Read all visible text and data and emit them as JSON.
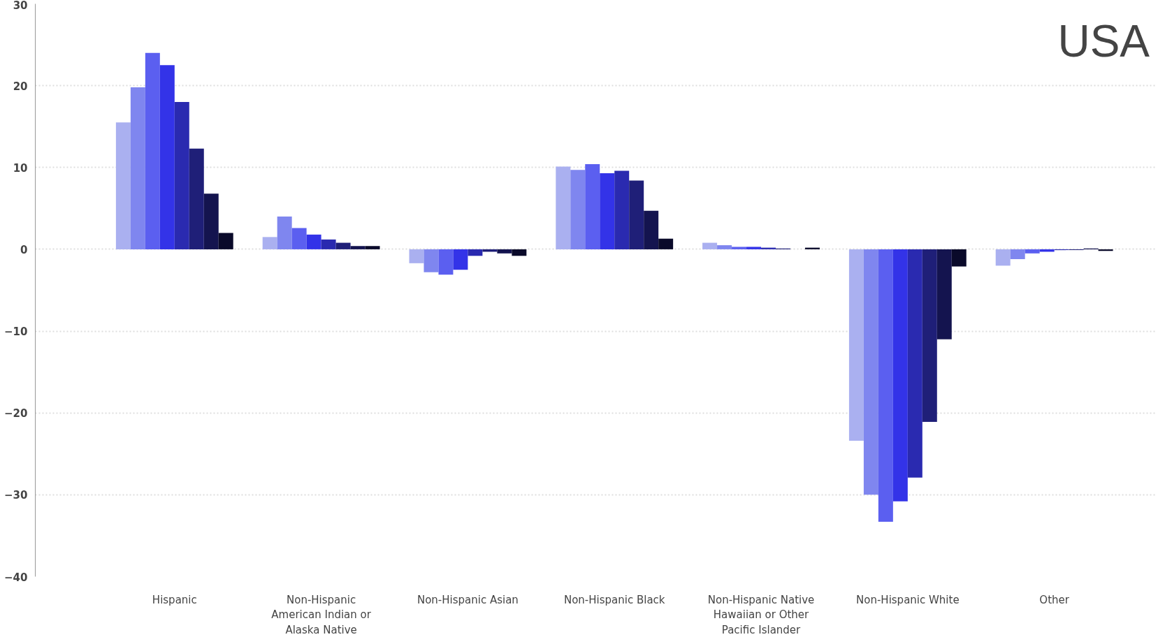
{
  "chart_data": {
    "type": "bar",
    "annotations": [
      "USA"
    ],
    "categories": [
      "Hispanic",
      "Non-Hispanic American Indian or Alaska Native",
      "Non-Hispanic Asian",
      "Non-Hispanic Black",
      "Non-Hispanic Native Hawaiian or Other Pacific Islander",
      "Non-Hispanic White",
      "Other"
    ],
    "series": [
      {
        "color": "#aab0f0",
        "values": [
          15.5,
          1.5,
          -1.7,
          10.1,
          0.8,
          -23.4,
          -2
        ]
      },
      {
        "color": "#7f86ef",
        "values": [
          19.8,
          4,
          -2.8,
          9.7,
          0.5,
          -30,
          -1.2
        ]
      },
      {
        "color": "#5b5ff0",
        "values": [
          24,
          2.6,
          -3.1,
          10.4,
          0.3,
          -33.3,
          -0.5
        ]
      },
      {
        "color": "#3333e8",
        "values": [
          22.5,
          1.8,
          -2.5,
          9.3,
          0.3,
          -30.8,
          -0.3
        ]
      },
      {
        "color": "#2a2ab0",
        "values": [
          18,
          1.2,
          -0.8,
          9.6,
          0.2,
          -27.9,
          -0.1
        ]
      },
      {
        "color": "#1f1f78",
        "values": [
          12.3,
          0.8,
          -0.3,
          8.4,
          0.1,
          -21.1,
          -0.1
        ]
      },
      {
        "color": "#14144f",
        "values": [
          6.8,
          0.4,
          -0.5,
          4.7,
          0,
          -11,
          0.1
        ]
      },
      {
        "color": "#0a0a2a",
        "values": [
          2,
          0.4,
          -0.8,
          1.3,
          0.2,
          -2.1,
          -0.2
        ]
      }
    ],
    "ylim": [
      -40,
      30
    ],
    "yticks": [
      -40,
      -30,
      -20,
      -10,
      0,
      10,
      20,
      30
    ],
    "grid": "y"
  }
}
